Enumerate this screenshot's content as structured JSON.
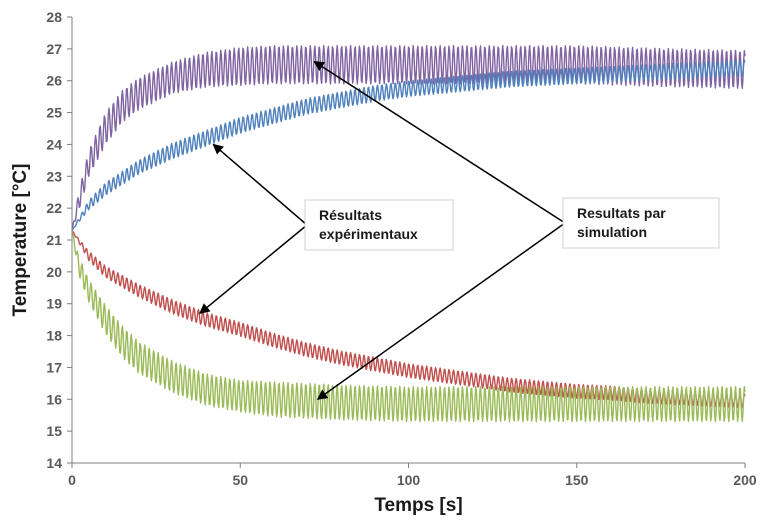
{
  "chart_data": {
    "type": "line",
    "title": "",
    "xlabel": "Temps [s]",
    "ylabel": "Temperature [°C]",
    "xlim": [
      0,
      200
    ],
    "ylim": [
      14,
      28
    ],
    "xticks": [
      0,
      50,
      100,
      150,
      200
    ],
    "yticks": [
      14,
      15,
      16,
      17,
      18,
      19,
      20,
      21,
      22,
      23,
      24,
      25,
      26,
      27,
      28
    ],
    "grid": false,
    "legend": "none",
    "series": [
      {
        "color": "#8064a2",
        "x": [
          0,
          2,
          5,
          10,
          15,
          20,
          30,
          40,
          50,
          60,
          70,
          80,
          100,
          120,
          150,
          180,
          200
        ],
        "y": [
          21.3,
          22.2,
          23.4,
          24.5,
          25.2,
          25.6,
          26.1,
          26.35,
          26.45,
          26.5,
          26.5,
          26.5,
          26.5,
          26.5,
          26.5,
          26.4,
          26.35
        ],
        "amplitude": [
          0,
          0.3,
          0.4,
          0.5,
          0.5,
          0.5,
          0.5,
          0.55,
          0.6,
          0.6,
          0.6,
          0.6,
          0.6,
          0.6,
          0.6,
          0.6,
          0.6
        ]
      },
      {
        "color": "#4f81bd",
        "x": [
          0,
          5,
          10,
          20,
          30,
          40,
          50,
          60,
          70,
          80,
          90,
          100,
          110,
          120,
          130,
          140,
          150,
          160,
          170,
          180,
          190,
          200
        ],
        "y": [
          21.3,
          22.1,
          22.6,
          23.3,
          23.8,
          24.2,
          24.6,
          24.9,
          25.2,
          25.4,
          25.6,
          25.75,
          25.85,
          25.95,
          26.05,
          26.1,
          26.15,
          26.2,
          26.25,
          26.3,
          26.35,
          26.4
        ],
        "amplitude": [
          0,
          0.15,
          0.2,
          0.22,
          0.25,
          0.25,
          0.25,
          0.25,
          0.25,
          0.25,
          0.25,
          0.25,
          0.25,
          0.25,
          0.25,
          0.25,
          0.25,
          0.25,
          0.25,
          0.25,
          0.25,
          0.25
        ]
      },
      {
        "color": "#c0504d",
        "x": [
          0,
          5,
          10,
          20,
          30,
          40,
          50,
          60,
          70,
          80,
          90,
          100,
          110,
          120,
          130,
          140,
          150,
          160,
          170,
          180,
          190,
          200
        ],
        "y": [
          21.3,
          20.5,
          20.0,
          19.4,
          18.9,
          18.5,
          18.2,
          17.85,
          17.55,
          17.3,
          17.1,
          16.9,
          16.75,
          16.6,
          16.45,
          16.35,
          16.25,
          16.2,
          16.1,
          16.05,
          16.0,
          15.95
        ],
        "amplitude": [
          0,
          0.15,
          0.18,
          0.2,
          0.22,
          0.22,
          0.22,
          0.22,
          0.22,
          0.22,
          0.22,
          0.22,
          0.22,
          0.22,
          0.22,
          0.22,
          0.22,
          0.22,
          0.22,
          0.22,
          0.22,
          0.22
        ]
      },
      {
        "color": "#9bbb59",
        "x": [
          0,
          2,
          5,
          10,
          15,
          20,
          30,
          40,
          50,
          60,
          70,
          80,
          100,
          120,
          150,
          180,
          200
        ],
        "y": [
          21.3,
          20.2,
          19.4,
          18.5,
          17.8,
          17.3,
          16.7,
          16.3,
          16.1,
          16.0,
          15.95,
          15.9,
          15.85,
          15.85,
          15.85,
          15.85,
          15.85
        ],
        "amplitude": [
          0,
          0.3,
          0.35,
          0.45,
          0.5,
          0.5,
          0.5,
          0.5,
          0.5,
          0.55,
          0.55,
          0.55,
          0.55,
          0.55,
          0.55,
          0.55,
          0.55
        ]
      }
    ],
    "annotations": [
      {
        "lines": [
          "Résultats",
          "expérimentaux"
        ],
        "targets": [
          [
            42,
            24.0
          ],
          [
            38,
            18.7
          ]
        ]
      },
      {
        "lines": [
          "Resultats par",
          "simulation"
        ],
        "targets": [
          [
            72,
            26.6
          ],
          [
            73,
            16.0
          ]
        ]
      }
    ]
  }
}
